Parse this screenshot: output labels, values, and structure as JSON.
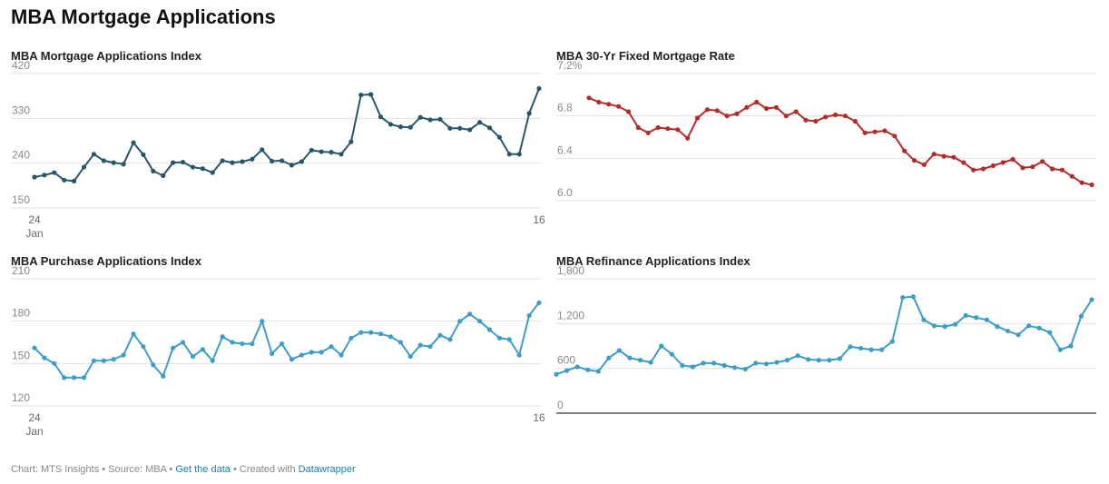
{
  "page": {
    "title": "MBA Mortgage Applications"
  },
  "footer": {
    "chart_credit": "Chart: MTS Insights",
    "sep1": " • ",
    "source": "Source: MBA",
    "sep2": " • ",
    "get_data": "Get the data",
    "sep3": " • Created with ",
    "datawrapper": "Datawrapper"
  },
  "colors": {
    "dark_teal": "#27566b",
    "red": "#b72a2a",
    "light_blue": "#3c9ec8",
    "grid": "#e0e0e0",
    "baseline": "#333333"
  },
  "chart_data": [
    {
      "id": "mortgage-index",
      "type": "line",
      "title": "MBA Mortgage Applications Index",
      "ylim": [
        150,
        420
      ],
      "y_ticks": [
        "420",
        "330",
        "240",
        "150"
      ],
      "y_tick_values": [
        420,
        330,
        240,
        150
      ],
      "x_tick_labels": [
        {
          "index": 0,
          "label": "24",
          "sub": "Jan"
        },
        {
          "index": 51,
          "label": "16",
          "sub": ""
        }
      ],
      "series": [
        {
          "color": "#27566b",
          "values": [
            212,
            216,
            221,
            206,
            204,
            232,
            258,
            245,
            241,
            238,
            281,
            257,
            224,
            215,
            241,
            242,
            232,
            229,
            221,
            245,
            241,
            243,
            248,
            267,
            244,
            245,
            236,
            243,
            266,
            263,
            262,
            258,
            283,
            377,
            378,
            333,
            318,
            313,
            312,
            332,
            327,
            328,
            310,
            310,
            307,
            322,
            311,
            292,
            258,
            258,
            340,
            390
          ]
        }
      ]
    },
    {
      "id": "fixed-rate",
      "type": "line",
      "title": "MBA 30-Yr Fixed Mortgage Rate",
      "ylim": [
        6.0,
        7.2
      ],
      "y_ticks": [
        "7.2%",
        "6.8",
        "6.4",
        "6.0"
      ],
      "y_tick_values": [
        7.2,
        6.8,
        6.4,
        6.0
      ],
      "x_tick_labels": [],
      "series": [
        {
          "color": "#b72a2a",
          "values": [
            6.97,
            6.93,
            6.91,
            6.89,
            6.84,
            6.69,
            6.64,
            6.69,
            6.68,
            6.67,
            6.59,
            6.78,
            6.86,
            6.85,
            6.8,
            6.82,
            6.88,
            6.93,
            6.87,
            6.88,
            6.8,
            6.84,
            6.76,
            6.75,
            6.79,
            6.81,
            6.8,
            6.75,
            6.64,
            6.65,
            6.66,
            6.61,
            6.47,
            6.38,
            6.34,
            6.44,
            6.42,
            6.41,
            6.36,
            6.29,
            6.3,
            6.33,
            6.36,
            6.39,
            6.31,
            6.32,
            6.37,
            6.3,
            6.29,
            6.23,
            6.17,
            6.15
          ]
        }
      ]
    },
    {
      "id": "purchase-index",
      "type": "line",
      "title": "MBA Purchase Applications Index",
      "ylim": [
        120,
        210
      ],
      "y_ticks": [
        "210",
        "180",
        "150",
        "120"
      ],
      "y_tick_values": [
        210,
        180,
        150,
        120
      ],
      "x_tick_labels": [
        {
          "index": 0,
          "label": "24",
          "sub": "Jan"
        },
        {
          "index": 51,
          "label": "16",
          "sub": ""
        }
      ],
      "series": [
        {
          "color": "#3c9ec8",
          "values": [
            161,
            154,
            150,
            140,
            140,
            140,
            152,
            152,
            153,
            156,
            171,
            162,
            149,
            141,
            161,
            165,
            155,
            160,
            152,
            169,
            165,
            164,
            164,
            180,
            157,
            164,
            153,
            156,
            158,
            158,
            162,
            156,
            168,
            172,
            172,
            171,
            169,
            165,
            155,
            163,
            162,
            170,
            167,
            180,
            185,
            180,
            174,
            168,
            167,
            156,
            184,
            193
          ]
        }
      ]
    },
    {
      "id": "refinance-index",
      "type": "line",
      "title": "MBA Refinance Applications Index",
      "ylim": [
        0,
        1800
      ],
      "y_ticks": [
        "1,800",
        "1,200",
        "600",
        "0"
      ],
      "y_tick_values": [
        1800,
        1200,
        600,
        0
      ],
      "x_tick_labels": [],
      "series": [
        {
          "color": "#3c9ec8",
          "values": [
            520,
            570,
            620,
            580,
            560,
            740,
            840,
            740,
            710,
            680,
            900,
            790,
            640,
            620,
            670,
            670,
            640,
            610,
            590,
            670,
            660,
            680,
            710,
            770,
            720,
            710,
            710,
            730,
            890,
            870,
            850,
            850,
            960,
            1550,
            1560,
            1250,
            1170,
            1160,
            1190,
            1310,
            1280,
            1250,
            1160,
            1100,
            1050,
            1170,
            1140,
            1080,
            850,
            900,
            1300,
            1520
          ]
        }
      ]
    }
  ]
}
